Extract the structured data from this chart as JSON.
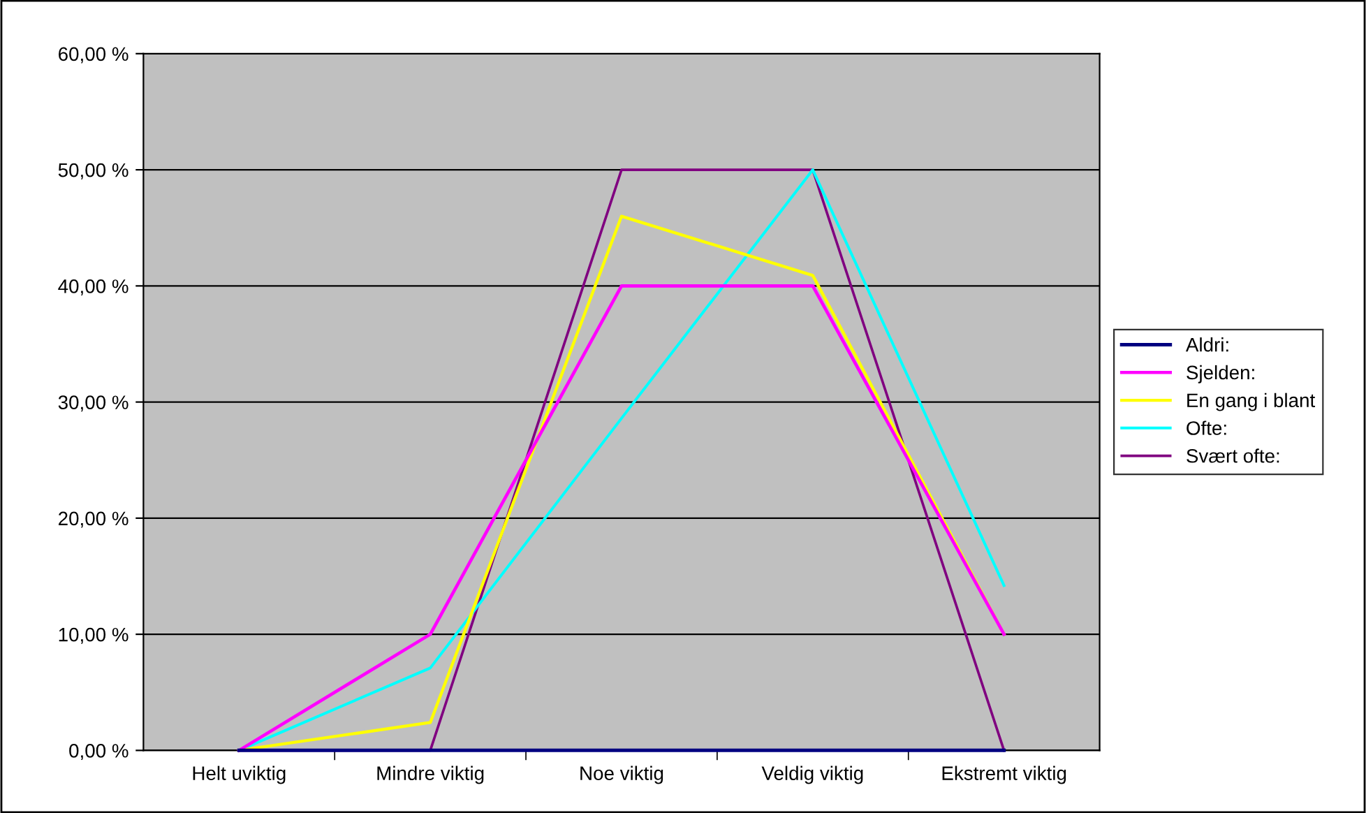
{
  "chart_data": {
    "type": "line",
    "categories": [
      "Helt uviktig",
      "Mindre viktig",
      "Noe viktig",
      "Veldig viktig",
      "Ekstremt viktig"
    ],
    "series": [
      {
        "name": "Aldri:",
        "color": "#000080",
        "values": [
          0,
          0,
          0,
          0,
          0
        ]
      },
      {
        "name": "Sjelden:",
        "color": "#ff00ff",
        "values": [
          0,
          10,
          40,
          40,
          10
        ]
      },
      {
        "name": "En gang i blant",
        "color": "#ffff00",
        "values": [
          0,
          2.4,
          46,
          40.9,
          10
        ]
      },
      {
        "name": "Ofte:",
        "color": "#00ffff",
        "values": [
          0,
          7.1,
          28.6,
          50,
          14.2
        ]
      },
      {
        "name": "Svært ofte:",
        "color": "#800080",
        "values": [
          0,
          0,
          50,
          50,
          0
        ]
      }
    ],
    "ylim": [
      0,
      60
    ],
    "yticks": [
      {
        "value": 0,
        "label": "0,00 %"
      },
      {
        "value": 10,
        "label": "10,00 %"
      },
      {
        "value": 20,
        "label": "20,00 %"
      },
      {
        "value": 30,
        "label": "30,00 %"
      },
      {
        "value": 40,
        "label": "40,00 %"
      },
      {
        "value": 50,
        "label": "50,00 %"
      },
      {
        "value": 60,
        "label": "60,00 %"
      }
    ],
    "grid": "y",
    "legend": "right",
    "marker": "none",
    "line_style": "solid"
  }
}
